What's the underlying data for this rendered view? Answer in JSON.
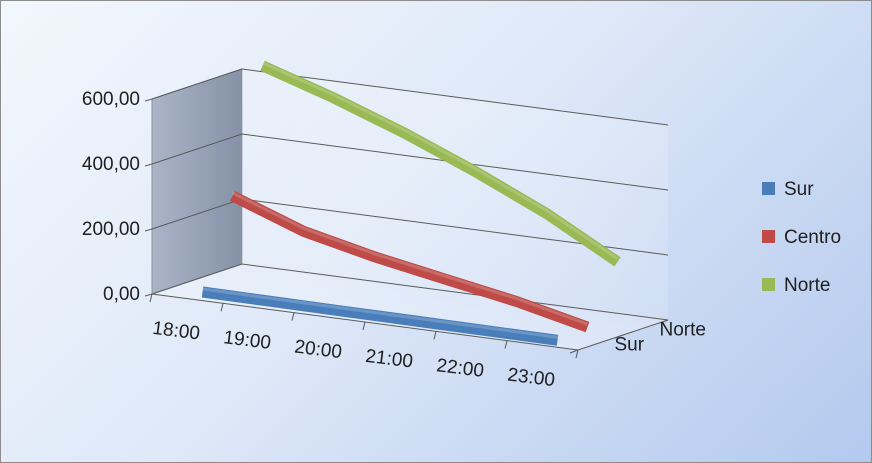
{
  "chart_data": {
    "type": "line",
    "view": "3d",
    "categories": [
      "18:00",
      "19:00",
      "20:00",
      "21:00",
      "22:00",
      "23:00"
    ],
    "series": [
      {
        "name": "Sur",
        "color": "#4a7ebb",
        "values": [
          5,
          4,
          3,
          2,
          1,
          0
        ]
      },
      {
        "name": "Centro",
        "color": "#be4b48",
        "values": [
          270,
          190,
          140,
          100,
          60,
          10
        ]
      },
      {
        "name": "Norte",
        "color": "#98b954",
        "values": [
          640,
          570,
          490,
          400,
          300,
          180
        ]
      }
    ],
    "yticks": [
      "0,00",
      "200,00",
      "400,00",
      "600,00"
    ],
    "ylim": [
      0,
      600
    ],
    "depth_labels": [
      "Sur",
      "Norte"
    ],
    "grid": true,
    "legend_position": "right"
  }
}
